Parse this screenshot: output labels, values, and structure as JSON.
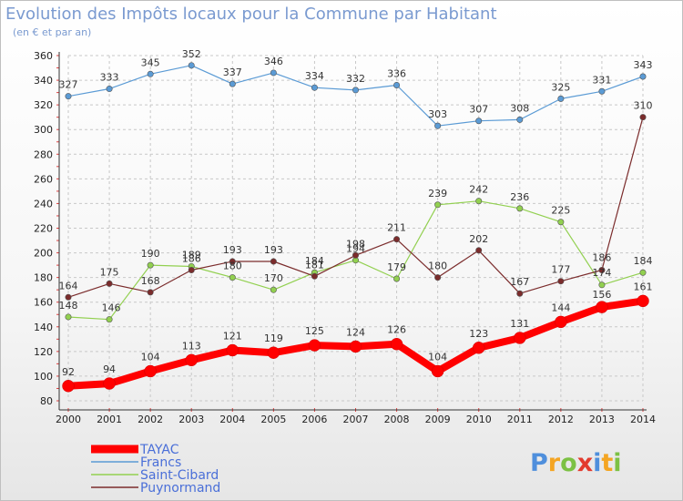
{
  "chart_data": {
    "type": "line",
    "title": "Evolution des Impôts locaux pour la Commune par Habitant",
    "subtitle": "(en € et par an)",
    "xlabel": "",
    "ylabel": "",
    "ylim": [
      80,
      360
    ],
    "yticks": [
      80,
      100,
      120,
      140,
      160,
      180,
      200,
      220,
      240,
      260,
      280,
      300,
      320,
      340,
      360
    ],
    "x": [
      "2000",
      "2001",
      "2002",
      "2003",
      "2004",
      "2005",
      "2006",
      "2007",
      "2008",
      "2009",
      "2010",
      "2011",
      "2012",
      "2013",
      "2014"
    ],
    "grid": true,
    "legend_position": "bottom-left",
    "series": [
      {
        "name": "Francs",
        "color": "#5b9bd5",
        "values": [
          327,
          333,
          345,
          352,
          337,
          346,
          334,
          332,
          336,
          303,
          307,
          308,
          325,
          331,
          343
        ]
      },
      {
        "name": "Saint-Cibard",
        "color": "#92d050",
        "values": [
          148,
          146,
          190,
          189,
          180,
          170,
          184,
          194,
          179,
          239,
          242,
          236,
          225,
          174,
          184
        ]
      },
      {
        "name": "Puynormand",
        "color": "#7b2c2c",
        "values": [
          164,
          175,
          168,
          186,
          193,
          193,
          181,
          198,
          211,
          180,
          202,
          167,
          177,
          186,
          310
        ]
      },
      {
        "name": "TAYAC",
        "color": "#ff0000",
        "values": [
          92,
          94,
          104,
          113,
          121,
          119,
          125,
          124,
          126,
          104,
          123,
          131,
          144,
          156,
          161
        ]
      }
    ],
    "legend_order": [
      "TAYAC",
      "Francs",
      "Saint-Cibard",
      "Puynormand"
    ]
  },
  "logo": {
    "letters": [
      "P",
      "r",
      "o",
      "x",
      "i",
      "t",
      "i"
    ],
    "colors": [
      "#4f8fdc",
      "#f4a523",
      "#7cc144",
      "#e33b2e",
      "#4f8fdc",
      "#f4a523",
      "#7cc144"
    ]
  }
}
